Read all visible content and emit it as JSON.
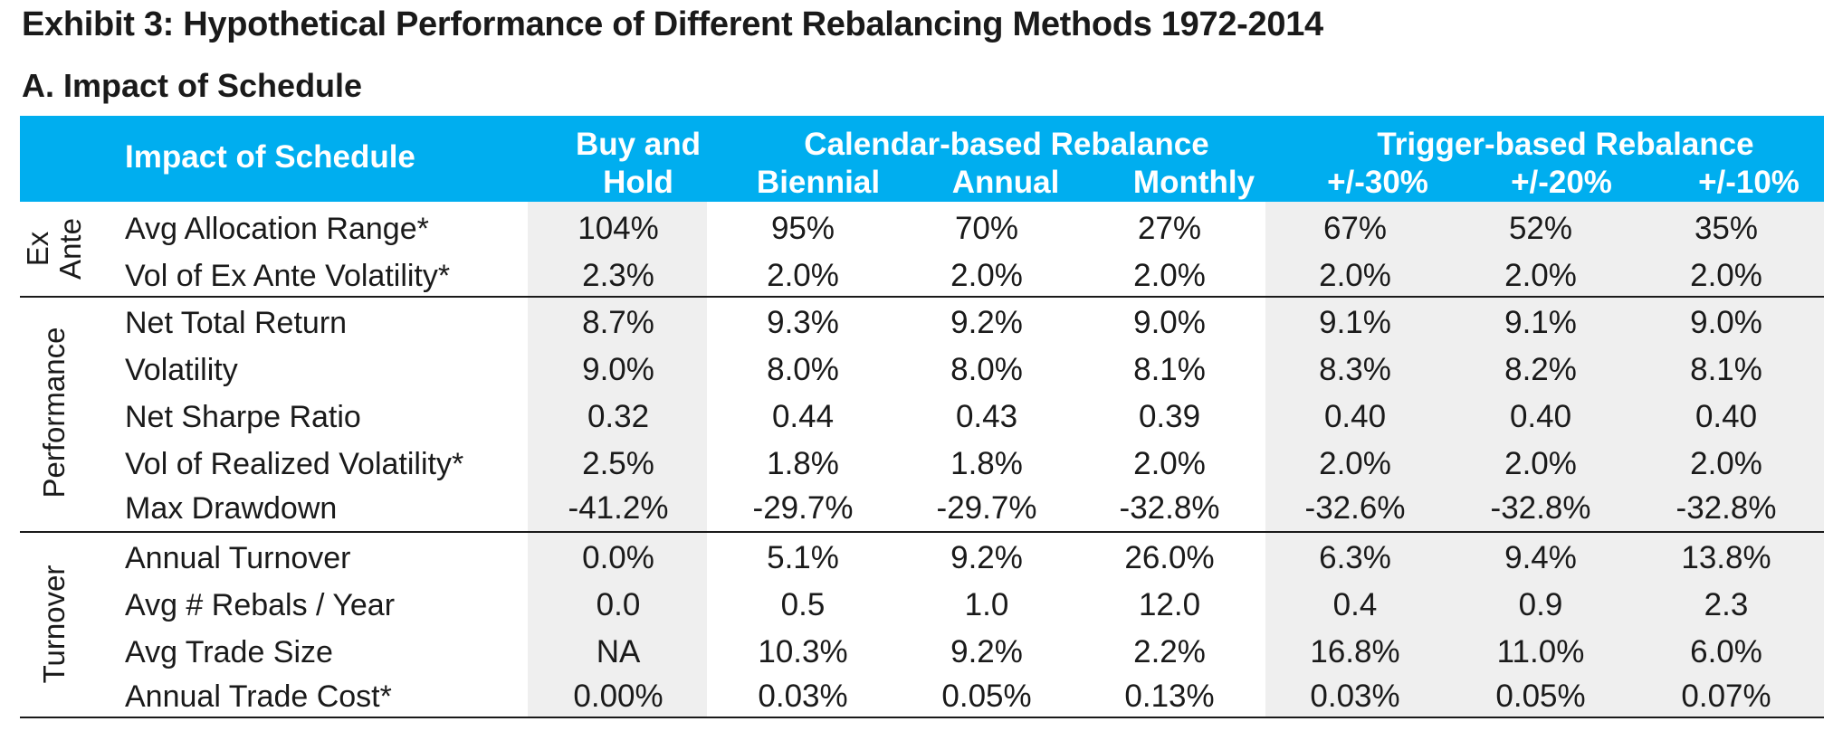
{
  "title": "Exhibit 3: Hypothetical Performance of Different Rebalancing Methods 1972-2014",
  "subtitle": "A. Impact of Schedule",
  "header": {
    "label_col": "Impact of Schedule",
    "buy_hold_line1": "Buy and",
    "buy_hold_line2": "Hold",
    "calendar_group": "Calendar-based Rebalance",
    "trigger_group": "Trigger-based Rebalance",
    "columns": [
      "Biennial",
      "Annual",
      "Monthly",
      "+/-30%",
      "+/-20%",
      "+/-10%"
    ]
  },
  "colors": {
    "header_bg": "#00aeef",
    "shade": "#efefef"
  },
  "groups": [
    {
      "name_line1": "Ex",
      "name_line2": "Ante",
      "rows": [
        {
          "label": "Avg Allocation Range*",
          "values": [
            "104%",
            "95%",
            "70%",
            "27%",
            "67%",
            "52%",
            "35%"
          ]
        },
        {
          "label": "Vol of Ex Ante Volatility*",
          "values": [
            "2.3%",
            "2.0%",
            "2.0%",
            "2.0%",
            "2.0%",
            "2.0%",
            "2.0%"
          ]
        }
      ]
    },
    {
      "name_line1": "Performance",
      "name_line2": "",
      "rows": [
        {
          "label": "Net Total Return",
          "values": [
            "8.7%",
            "9.3%",
            "9.2%",
            "9.0%",
            "9.1%",
            "9.1%",
            "9.0%"
          ]
        },
        {
          "label": "Volatility",
          "values": [
            "9.0%",
            "8.0%",
            "8.0%",
            "8.1%",
            "8.3%",
            "8.2%",
            "8.1%"
          ]
        },
        {
          "label": "Net Sharpe Ratio",
          "values": [
            "0.32",
            "0.44",
            "0.43",
            "0.39",
            "0.40",
            "0.40",
            "0.40"
          ]
        },
        {
          "label": "Vol of Realized Volatility*",
          "values": [
            "2.5%",
            "1.8%",
            "1.8%",
            "2.0%",
            "2.0%",
            "2.0%",
            "2.0%"
          ]
        },
        {
          "label": "Max Drawdown",
          "values": [
            "-41.2%",
            "-29.7%",
            "-29.7%",
            "-32.8%",
            "-32.6%",
            "-32.8%",
            "-32.8%"
          ]
        }
      ]
    },
    {
      "name_line1": "Turnover",
      "name_line2": "",
      "rows": [
        {
          "label": "Annual Turnover",
          "values": [
            "0.0%",
            "5.1%",
            "9.2%",
            "26.0%",
            "6.3%",
            "9.4%",
            "13.8%"
          ]
        },
        {
          "label": "Avg # Rebals / Year",
          "values": [
            "0.0",
            "0.5",
            "1.0",
            "12.0",
            "0.4",
            "0.9",
            "2.3"
          ]
        },
        {
          "label": "Avg Trade Size",
          "values": [
            "NA",
            "10.3%",
            "9.2%",
            "2.2%",
            "16.8%",
            "11.0%",
            "6.0%"
          ]
        },
        {
          "label": "Annual Trade Cost*",
          "values": [
            "0.00%",
            "0.03%",
            "0.05%",
            "0.13%",
            "0.03%",
            "0.05%",
            "0.07%"
          ]
        }
      ]
    }
  ]
}
